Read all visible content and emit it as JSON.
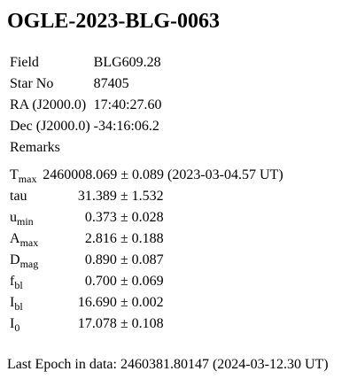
{
  "page": {
    "title": "OGLE-2023-BLG-0063"
  },
  "info": {
    "rows": [
      {
        "label": "Field",
        "value": "BLG609.28"
      },
      {
        "label": "Star No",
        "value": "87405"
      },
      {
        "label": "RA (J2000.0)",
        "value": "17:40:27.60"
      },
      {
        "label": "Dec (J2000.0)",
        "value": "-34:16:06.2"
      },
      {
        "label": "Remarks",
        "value": ""
      }
    ]
  },
  "params": {
    "tmax": {
      "base": "T",
      "sub": "max",
      "value": "2460008.069 ± 0.089 (2023-03-04.57 UT)"
    },
    "tau": {
      "base": "tau",
      "sub": "",
      "value": "31.389 ± 1.532"
    },
    "umin": {
      "base": "u",
      "sub": "min",
      "value": "0.373 ± 0.028"
    },
    "amax": {
      "base": "A",
      "sub": "max",
      "value": "2.816 ± 0.188"
    },
    "dmag": {
      "base": "D",
      "sub": "mag",
      "value": "0.890 ± 0.087"
    },
    "fbl": {
      "base": "f",
      "sub": "bl",
      "value": "0.700 ± 0.069"
    },
    "ibl": {
      "base": "I",
      "sub": "bl",
      "value": "16.690 ± 0.002"
    },
    "i0": {
      "base": "I",
      "sub": "0",
      "value": "17.078 ± 0.108"
    }
  },
  "footer": {
    "last_epoch": "Last Epoch in data: 2460381.80147 (2024-03-12.30 UT)"
  }
}
